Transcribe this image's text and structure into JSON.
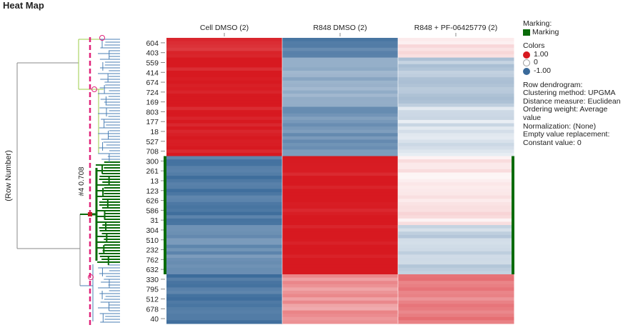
{
  "title": "Heat Map",
  "row_axis_label": "(Row Number)",
  "dendrogram_cut_label": "#4  0.708",
  "columns": [
    "Cell DMSO (2)",
    "R848 DMSO (2)",
    "R848 + PF-06425779 (2)"
  ],
  "row_labels": [
    "604",
    "403",
    "559",
    "414",
    "674",
    "724",
    "169",
    "803",
    "177",
    "18",
    "527",
    "708",
    "300",
    "261",
    "13",
    "123",
    "626",
    "586",
    "31",
    "304",
    "510",
    "232",
    "762",
    "632",
    "330",
    "795",
    "512",
    "678",
    "40"
  ],
  "legend": {
    "marking_title": "Marking:",
    "marking_label": "Marking",
    "marking_color": "#0a6b0a",
    "colors_title": "Colors",
    "color_stops": [
      {
        "label": "1.00",
        "color": "#d71920"
      },
      {
        "label": "0",
        "color": "#ffffff"
      },
      {
        "label": "-1.00",
        "color": "#3a6a9a"
      }
    ],
    "dendro_lines": [
      "Row dendrogram:",
      "Clustering method: UPGMA",
      "Distance measure: Euclidean",
      "Ordering weight: Average",
      "value",
      "Normalization: (None)",
      "Empty value replacement:",
      "Constant value: 0"
    ]
  },
  "chart_data": {
    "type": "heatmap",
    "title": "Heat Map",
    "color_scale": {
      "min": -1.0,
      "mid": 0,
      "max": 1.0,
      "min_color": "#3a6a9a",
      "mid_color": "#ffffff",
      "max_color": "#d71920"
    },
    "columns": [
      "Cell DMSO (2)",
      "R848 DMSO (2)",
      "R848 + PF-06425779 (2)"
    ],
    "row_blocks": [
      {
        "rows": [
          "604",
          "403"
        ],
        "values": [
          0.9,
          -0.85,
          0.1
        ]
      },
      {
        "rows": [
          "559",
          "414",
          "674",
          "724",
          "169"
        ],
        "values": [
          1.0,
          -0.55,
          -0.35
        ]
      },
      {
        "rows": [
          "803",
          "177",
          "18",
          "527",
          "708"
        ],
        "values": [
          1.0,
          -0.7,
          -0.2
        ]
      },
      {
        "rows": [
          "300",
          "261",
          "13",
          "123",
          "626",
          "586",
          "31"
        ],
        "values": [
          -0.9,
          1.0,
          0.12
        ]
      },
      {
        "rows": [
          "304",
          "510",
          "232",
          "762",
          "632"
        ],
        "values": [
          -0.75,
          1.0,
          -0.3
        ]
      },
      {
        "rows": [
          "330",
          "795",
          "512",
          "678",
          "40"
        ],
        "values": [
          -0.9,
          0.45,
          0.55
        ]
      }
    ],
    "marked_rows": [
      "300",
      "261",
      "13",
      "123",
      "626",
      "586",
      "31",
      "304",
      "510",
      "232",
      "762",
      "632"
    ]
  }
}
